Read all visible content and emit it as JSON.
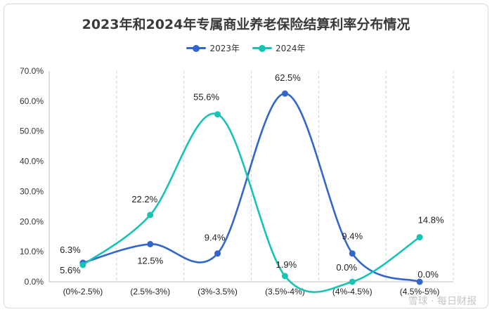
{
  "chart_data": {
    "type": "line",
    "title": "2023年和2024年专属商业养老保险结算利率分布情况",
    "categories": [
      "(0%-2.5%)",
      "(2.5%-3%)",
      "(3%-3.5%)",
      "(3.5%-4%)",
      "(4%-4.5%)",
      "(4.5%-5%)"
    ],
    "series": [
      {
        "name": "2023年",
        "color": "#3366cc",
        "values": [
          6.3,
          12.5,
          9.4,
          62.5,
          9.4,
          0.0
        ],
        "labels": [
          "6.3%",
          "12.5%",
          "9.4%",
          "62.5%",
          "9.4%",
          "0.0%"
        ]
      },
      {
        "name": "2024年",
        "color": "#17c3b2",
        "values": [
          5.6,
          22.2,
          55.6,
          1.9,
          0.0,
          14.8
        ],
        "labels": [
          "5.6%",
          "22.2%",
          "55.6%",
          "1.9%",
          "0.0%",
          "14.8%"
        ]
      }
    ],
    "y_ticks": [
      "0.0%",
      "10.0%",
      "20.0%",
      "30.0%",
      "40.0%",
      "50.0%",
      "60.0%",
      "70.0%"
    ],
    "ylim": [
      0,
      70
    ],
    "smooth": true,
    "grid": "vertical-dashed",
    "legend_position": "top"
  },
  "watermark": "雪球 · 每日财报"
}
